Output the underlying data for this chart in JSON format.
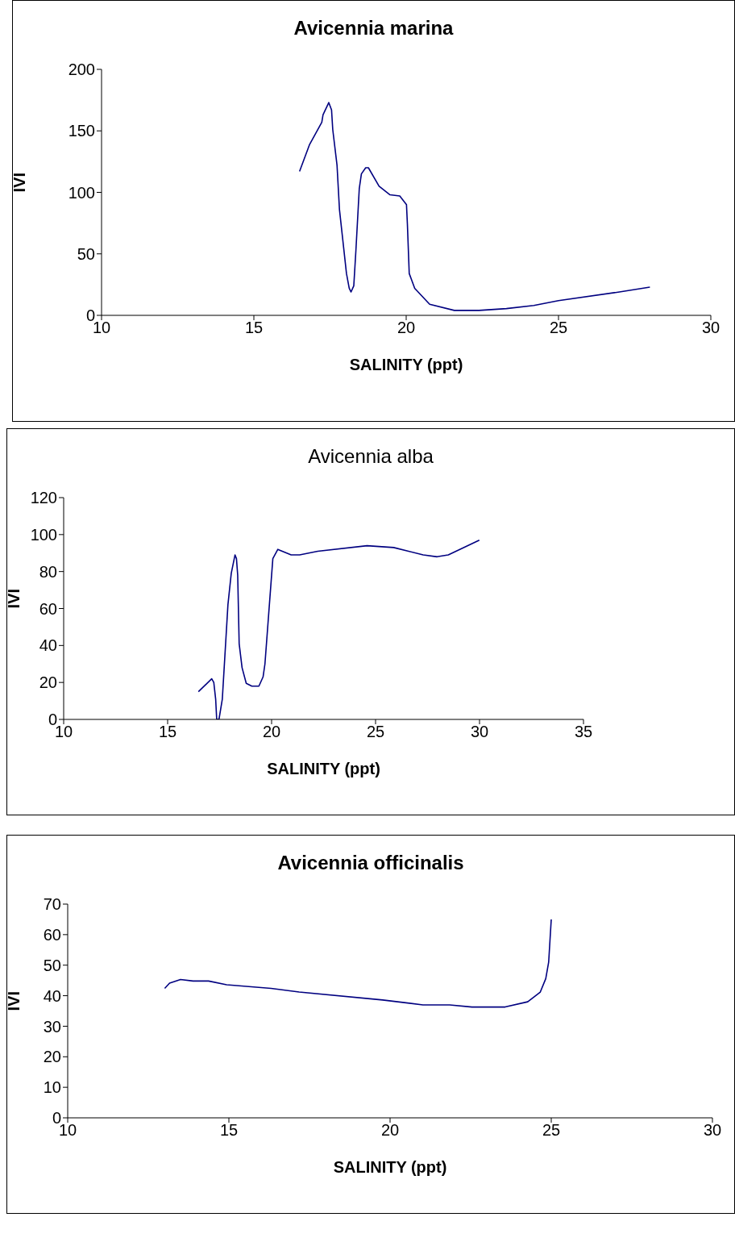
{
  "chart_data": [
    {
      "type": "line",
      "title": "Avicennia marina",
      "xlabel": "SALINITY (ppt)",
      "ylabel": "IVI",
      "color": "#000080",
      "x": [
        16.5,
        16.83,
        17.23,
        17.27,
        17.46,
        17.55,
        17.59,
        17.73,
        17.81,
        18.04,
        18.13,
        18.19,
        18.28,
        18.35,
        18.46,
        18.53,
        18.67,
        18.76,
        19.11,
        19.47,
        19.79,
        20.01,
        20.04,
        20.1,
        20.28,
        20.77,
        21.58,
        22.39,
        23.29,
        24.19,
        25,
        27,
        28
      ],
      "values": [
        117,
        139,
        157,
        163,
        173,
        167,
        151,
        122,
        86,
        34,
        22,
        19,
        24,
        53,
        103,
        115,
        120,
        120,
        105,
        98,
        97,
        90,
        74,
        34,
        22,
        9,
        4,
        4,
        5.5,
        8,
        12,
        19,
        23
      ],
      "xlim": [
        10,
        30
      ],
      "xticks": [
        10,
        15,
        20,
        25,
        30
      ],
      "ylim": [
        0,
        200
      ],
      "yticks": [
        0,
        50,
        100,
        150,
        200
      ]
    },
    {
      "type": "line",
      "title": "Avicennia alba",
      "xlabel": "SALINITY (ppt)",
      "ylabel": "IVI",
      "color": "#000080",
      "x": [
        16.48,
        17.12,
        17.22,
        17.31,
        17.36,
        17.47,
        17.63,
        17.9,
        18.06,
        18.24,
        18.31,
        18.37,
        18.44,
        18.58,
        18.78,
        19.05,
        19.39,
        19.59,
        19.68,
        20.06,
        20.3,
        20.94,
        21.35,
        22.22,
        24.59,
        25.87,
        27.29,
        27.96,
        28.5,
        29.99
      ],
      "values": [
        15,
        22,
        20,
        11,
        0,
        0,
        11,
        62,
        79,
        89,
        87,
        78,
        41,
        28,
        19.5,
        18,
        18,
        23,
        30,
        87,
        92,
        89,
        89,
        91,
        94,
        93,
        89,
        88,
        89,
        97
      ],
      "xlim": [
        10,
        35
      ],
      "xticks": [
        10,
        15,
        20,
        25,
        30,
        35
      ],
      "ylim": [
        0,
        120
      ],
      "yticks": [
        0,
        20,
        40,
        60,
        80,
        100,
        120
      ]
    },
    {
      "type": "line",
      "title": "Avicennia officinalis",
      "xlabel": "SALINITY (ppt)",
      "ylabel": "IVI",
      "color": "#000080",
      "x": [
        13.01,
        13.16,
        13.5,
        13.89,
        14.37,
        14.93,
        16.31,
        17.18,
        19.77,
        21.02,
        21.85,
        22.54,
        23.57,
        24.27,
        24.66,
        24.83,
        24.92,
        24.96,
        25.0
      ],
      "values": [
        42.4,
        44.1,
        45.3,
        44.8,
        44.8,
        43.6,
        42.4,
        41.2,
        38.6,
        37,
        37,
        36.3,
        36.3,
        38,
        41.2,
        45.6,
        51,
        58,
        65
      ],
      "xlim": [
        10,
        30
      ],
      "xticks": [
        10,
        15,
        20,
        25,
        30
      ],
      "ylim": [
        0,
        70
      ],
      "yticks": [
        0,
        10,
        20,
        30,
        40,
        50,
        60,
        70
      ]
    }
  ]
}
